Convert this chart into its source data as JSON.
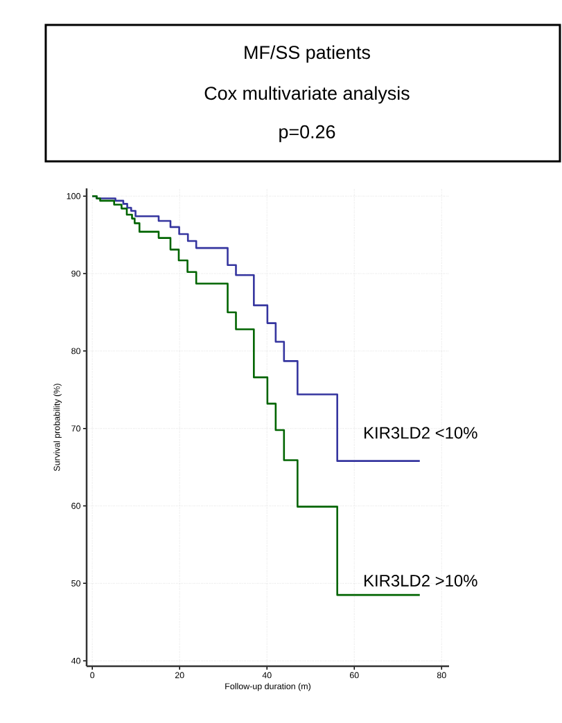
{
  "chart_data": {
    "type": "step",
    "title": "MF/SS patients",
    "subtitle": "Cox multivariate analysis",
    "annotations": [
      "p=0.26"
    ],
    "xlabel": "Follow-up duration (m)",
    "ylabel": "Survival probability (%)",
    "xlim": [
      -1.3,
      81.7
    ],
    "ylim": [
      39.3,
      101
    ],
    "xticks": [
      0,
      20,
      40,
      60,
      80
    ],
    "yticks": [
      40,
      50,
      60,
      70,
      80,
      90,
      100
    ],
    "grid": true,
    "legend": false,
    "series": [
      {
        "name": "KIR3LD2 <10%",
        "color": "#35359f",
        "x": [
          0,
          1,
          5.3,
          7.1,
          8,
          8.9,
          9.9,
          15.2,
          17.9,
          19.9,
          21.9,
          23.8,
          31,
          32.9,
          37,
          40.1,
          42,
          43.9,
          47,
          56.1,
          75
        ],
        "values": [
          100,
          99.7,
          99.4,
          99.0,
          98.5,
          98.1,
          97.4,
          96.8,
          96.0,
          95.1,
          94.2,
          93.3,
          91.1,
          89.8,
          85.9,
          83.6,
          81.2,
          78.7,
          74.4,
          65.8,
          65.8
        ]
      },
      {
        "name": "KIR3LD2 >10%",
        "color": "#006400",
        "x": [
          0,
          1,
          1.8,
          5,
          6.7,
          7.9,
          9.1,
          9.7,
          10.8,
          15.2,
          17.9,
          19.8,
          21.8,
          23.8,
          31,
          32.9,
          37,
          40.1,
          42,
          43.9,
          47,
          56.1,
          75
        ],
        "values": [
          100,
          99.7,
          99.4,
          98.9,
          98.4,
          97.6,
          97.1,
          96.5,
          95.4,
          94.6,
          93.1,
          91.7,
          90.2,
          88.7,
          85.0,
          82.8,
          76.6,
          73.2,
          69.8,
          65.9,
          59.9,
          48.5,
          48.5
        ]
      }
    ]
  }
}
